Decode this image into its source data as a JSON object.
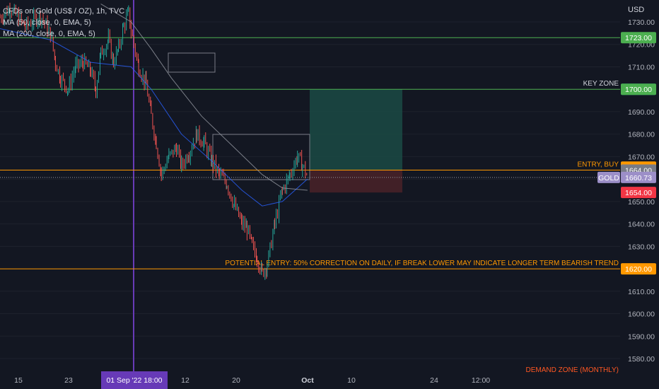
{
  "header": {
    "symbol_line": "CFDs on Gold (US$ / OZ), 1h, TVC",
    "ma1": "MA (50, close, 0, EMA, 5)",
    "ma2": "MA (200, close, 0, EMA, 5)"
  },
  "colors": {
    "background": "#131722",
    "green_line": "#4caf50",
    "orange_line": "#ff9800",
    "purple_line": "#673ab7",
    "up_candle": "#26a69a",
    "down_candle": "#ef5350",
    "profit_zone": "#1b4a44",
    "loss_zone": "#4a2228"
  },
  "chart_data": {
    "type": "candlestick",
    "title": "CFDs on Gold (US$ / OZ), 1h, TVC",
    "ylabel": "USD",
    "ylim": [
      1575,
      1740
    ],
    "y_ticks": [
      1580,
      1590,
      1600,
      1610,
      1620,
      1630,
      1640,
      1650,
      1660,
      1670,
      1680,
      1690,
      1700,
      1710,
      1720,
      1730
    ],
    "x_ticks": [
      "15",
      "23",
      "01 Sep '22  18:00",
      "12",
      "20",
      "Oct",
      "10",
      "24",
      "12:00"
    ],
    "price_path": [
      [
        0.0,
        1732
      ],
      [
        0.02,
        1736
      ],
      [
        0.05,
        1728
      ],
      [
        0.08,
        1733
      ],
      [
        0.1,
        1725
      ],
      [
        0.11,
        1712
      ],
      [
        0.12,
        1705
      ],
      [
        0.135,
        1700
      ],
      [
        0.15,
        1710
      ],
      [
        0.165,
        1712
      ],
      [
        0.18,
        1708
      ],
      [
        0.19,
        1700
      ],
      [
        0.2,
        1716
      ],
      [
        0.215,
        1722
      ],
      [
        0.225,
        1712
      ],
      [
        0.235,
        1718
      ],
      [
        0.245,
        1728
      ],
      [
        0.255,
        1734
      ],
      [
        0.26,
        1726
      ],
      [
        0.275,
        1710
      ],
      [
        0.29,
        1702
      ],
      [
        0.3,
        1688
      ],
      [
        0.31,
        1676
      ],
      [
        0.32,
        1662
      ],
      [
        0.335,
        1670
      ],
      [
        0.35,
        1674
      ],
      [
        0.36,
        1666
      ],
      [
        0.375,
        1672
      ],
      [
        0.39,
        1680
      ],
      [
        0.405,
        1676
      ],
      [
        0.42,
        1668
      ],
      [
        0.435,
        1662
      ],
      [
        0.45,
        1658
      ],
      [
        0.465,
        1648
      ],
      [
        0.48,
        1640
      ],
      [
        0.49,
        1638
      ],
      [
        0.5,
        1630
      ],
      [
        0.51,
        1625
      ],
      [
        0.52,
        1618
      ],
      [
        0.53,
        1622
      ],
      [
        0.545,
        1640
      ],
      [
        0.56,
        1655
      ],
      [
        0.575,
        1662
      ],
      [
        0.59,
        1670
      ],
      [
        0.6,
        1666
      ],
      [
        0.61,
        1661
      ]
    ],
    "ma50": [
      [
        0.0,
        1727
      ],
      [
        0.1,
        1722
      ],
      [
        0.18,
        1712
      ],
      [
        0.26,
        1710
      ],
      [
        0.3,
        1700
      ],
      [
        0.36,
        1680
      ],
      [
        0.42,
        1668
      ],
      [
        0.48,
        1655
      ],
      [
        0.52,
        1648
      ],
      [
        0.56,
        1650
      ],
      [
        0.61,
        1660
      ]
    ],
    "ma200": [
      [
        0.2,
        1738
      ],
      [
        0.26,
        1730
      ],
      [
        0.3,
        1718
      ],
      [
        0.34,
        1705
      ],
      [
        0.4,
        1688
      ],
      [
        0.46,
        1675
      ],
      [
        0.52,
        1662
      ],
      [
        0.56,
        1656
      ],
      [
        0.61,
        1655
      ]
    ],
    "hlines": [
      {
        "name": "resistance-1723",
        "price": 1723.0,
        "color": "#4caf50",
        "label": "1723.00",
        "style": "solid"
      },
      {
        "name": "key-zone",
        "price": 1700.0,
        "color": "#4caf50",
        "label": "1700.00",
        "style": "solid",
        "text": "KEY ZONE"
      },
      {
        "name": "entry-buy",
        "price": 1664.0,
        "color": "#ff9800",
        "label": "1664.00",
        "style": "solid",
        "text": "ENTRY, BUY"
      },
      {
        "name": "potential-entry",
        "price": 1620.0,
        "color": "#ff9800",
        "label": "1620.00",
        "style": "solid",
        "text": "POTENTIAL ENTRY: 50% CORRECTION ON DAILY, IF BREAK LOWER MAY INDICATE LONGER TERM BEARISH TREND"
      },
      {
        "name": "current-price",
        "price": 1660.73,
        "color": "#9598a1",
        "label": "1660.73",
        "style": "dotted"
      }
    ],
    "price_labels": [
      {
        "price": 1700.0,
        "label": "1700.00",
        "color": "#089981"
      },
      {
        "price": 1665.34,
        "label": "1665.34",
        "color": "#ff9800"
      },
      {
        "price": 1654.0,
        "label": "1654.00",
        "color": "#f23645"
      }
    ],
    "current": {
      "symbol": "GOLD",
      "price": 1660.73
    },
    "position": {
      "entry": 1664.0,
      "target": 1700.0,
      "stop": 1654.0
    },
    "annotations": [
      "DEMAND ZONE (MONTHLY)"
    ]
  }
}
